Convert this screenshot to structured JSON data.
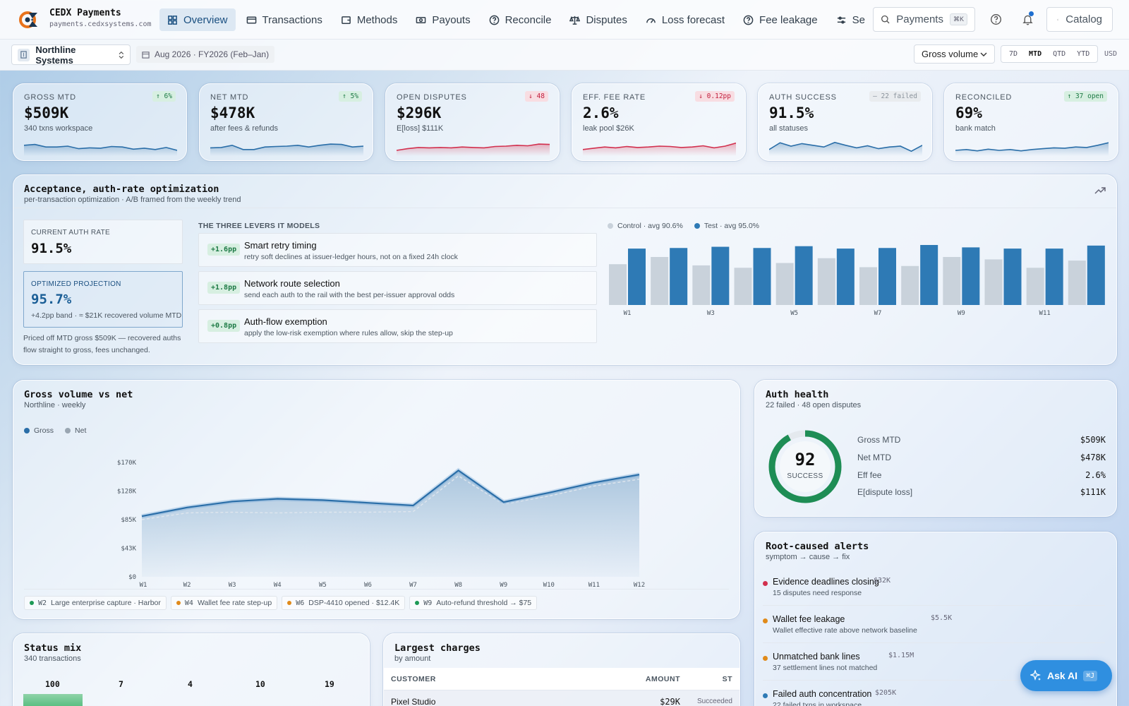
{
  "brand": {
    "name": "CEDX Payments",
    "domain": "payments.cedxsystems.com"
  },
  "nav": [
    {
      "label": "Overview",
      "icon": "grid-icon",
      "active": true
    },
    {
      "label": "Transactions",
      "icon": "card-icon"
    },
    {
      "label": "Methods",
      "icon": "wallet-icon"
    },
    {
      "label": "Payouts",
      "icon": "cash-icon"
    },
    {
      "label": "Reconcile",
      "icon": "help-circle-icon"
    },
    {
      "label": "Disputes",
      "icon": "scale-icon"
    },
    {
      "label": "Loss forecast",
      "icon": "gauge-icon"
    },
    {
      "label": "Fee leakage",
      "icon": "help-circle-icon"
    },
    {
      "label": "Se",
      "icon": "sliders-icon"
    }
  ],
  "search": {
    "label": "Payments",
    "shortcut": "⌘K"
  },
  "catalog_label": "Catalog",
  "workspace": "Northline Systems",
  "period": "Aug 2026 · FY2026 (Feb–Jan)",
  "metric_select": "Gross volume",
  "ranges": [
    "7D",
    "MTD",
    "QTD",
    "YTD"
  ],
  "active_range": "MTD",
  "currency": "USD",
  "kpis": [
    {
      "label": "GROSS MTD",
      "badge": "↑ 6%",
      "badge_type": "up",
      "value": "$509K",
      "sub": "340 txns workspace",
      "spark_color": "#2a6ea8",
      "spark": [
        0.55,
        0.6,
        0.45,
        0.45,
        0.5,
        0.35,
        0.4,
        0.38,
        0.48,
        0.45,
        0.32,
        0.38,
        0.3,
        0.42,
        0.25
      ]
    },
    {
      "label": "NET MTD",
      "badge": "↑ 5%",
      "badge_type": "up",
      "value": "$478K",
      "sub": "after fees & refunds",
      "spark_color": "#2a6ea8",
      "spark": [
        0.4,
        0.42,
        0.55,
        0.3,
        0.3,
        0.45,
        0.48,
        0.5,
        0.55,
        0.45,
        0.55,
        0.62,
        0.6,
        0.45,
        0.5
      ]
    },
    {
      "label": "OPEN DISPUTES",
      "badge": "↓ 48",
      "badge_type": "down",
      "value": "$296K",
      "sub": "E[loss] $111K",
      "spark_color": "#d2304e",
      "spark": [
        0.25,
        0.35,
        0.42,
        0.4,
        0.42,
        0.4,
        0.45,
        0.42,
        0.4,
        0.48,
        0.5,
        0.55,
        0.52,
        0.62,
        0.6
      ]
    },
    {
      "label": "EFF. FEE RATE",
      "badge": "↓ 0.12pp",
      "badge_type": "down",
      "value": "2.6%",
      "sub": "leak pool $26K",
      "spark_color": "#d2304e",
      "spark": [
        0.3,
        0.38,
        0.45,
        0.4,
        0.48,
        0.42,
        0.45,
        0.5,
        0.48,
        0.42,
        0.45,
        0.52,
        0.4,
        0.5,
        0.68
      ]
    },
    {
      "label": "AUTH SUCCESS",
      "badge": "— 22 failed",
      "badge_type": "flat",
      "value": "91.5%",
      "sub": "all statuses",
      "spark_color": "#2a6ea8",
      "spark": [
        0.3,
        0.7,
        0.5,
        0.65,
        0.55,
        0.45,
        0.72,
        0.55,
        0.4,
        0.52,
        0.35,
        0.45,
        0.5,
        0.2,
        0.55
      ]
    },
    {
      "label": "RECONCILED",
      "badge": "↑ 37 open",
      "badge_type": "up",
      "value": "69%",
      "sub": "bank match",
      "spark_color": "#2a6ea8",
      "spark": [
        0.25,
        0.3,
        0.22,
        0.32,
        0.25,
        0.3,
        0.22,
        0.3,
        0.35,
        0.4,
        0.38,
        0.45,
        0.42,
        0.55,
        0.7
      ]
    }
  ],
  "acceptance": {
    "title": "Acceptance, auth-rate optimization",
    "subtitle": "per-transaction optimization · A/B framed from the weekly trend",
    "current_label": "CURRENT AUTH RATE",
    "current_value": "91.5%",
    "proj_label": "OPTIMIZED PROJECTION",
    "proj_value": "95.7%",
    "proj_sub": "+4.2pp band · ≈ $21K recovered volume MTD",
    "note": "Priced off MTD gross $509K — recovered auths flow straight to gross, fees unchanged.",
    "levers_title": "THE THREE LEVERS IT MODELS",
    "levers": [
      {
        "pp": "+1.6pp",
        "name": "Smart retry timing",
        "desc": "retry soft declines at issuer-ledger hours, not on a fixed 24h clock"
      },
      {
        "pp": "+1.8pp",
        "name": "Network route selection",
        "desc": "send each auth to the rail with the best per-issuer approval odds"
      },
      {
        "pp": "+0.8pp",
        "name": "Auth-flow exemption",
        "desc": "apply the low-risk exemption where rules allow, skip the step-up"
      }
    ]
  },
  "ab_chart_data": {
    "type": "bar",
    "series": [
      {
        "name": "Control · avg 90.6%",
        "color": "#c9d2db",
        "values": [
          0.68,
          0.8,
          0.66,
          0.62,
          0.7,
          0.78,
          0.63,
          0.65,
          0.8,
          0.76,
          0.62,
          0.74
        ]
      },
      {
        "name": "Test · avg 95.0%",
        "color": "#2e7ab5",
        "values": [
          0.94,
          0.95,
          0.97,
          0.95,
          0.98,
          0.94,
          0.95,
          1.0,
          0.96,
          0.94,
          0.94,
          0.99
        ]
      }
    ],
    "tick_labels": [
      "W1",
      "",
      "W3",
      "",
      "W5",
      "",
      "W7",
      "",
      "W9",
      "",
      "W11",
      ""
    ]
  },
  "gross_chart": {
    "title": "Gross volume vs net",
    "subtitle": "Northline · weekly",
    "chart_data": {
      "type": "area",
      "x": [
        "W1",
        "W2",
        "W3",
        "W4",
        "W5",
        "W6",
        "W7",
        "W8",
        "W9",
        "W10",
        "W11",
        "W12"
      ],
      "series": [
        {
          "name": "Gross",
          "color": "#2a6ea8",
          "values": [
            90,
            103,
            112,
            116,
            114,
            110,
            106,
            158,
            111,
            125,
            140,
            152
          ]
        },
        {
          "name": "Net",
          "color": "#9aa6b2",
          "values": [
            85,
            95,
            96,
            95,
            96,
            96,
            97,
            150,
            108,
            120,
            135,
            145
          ]
        }
      ],
      "y_ticks": [
        "$0",
        "$43K",
        "$85K",
        "$128K",
        "$170K"
      ],
      "ylim": [
        0,
        170
      ]
    },
    "annotations": [
      {
        "week": "W2",
        "text": "Large enterprise capture · Harbor",
        "color": "#1d9a55"
      },
      {
        "week": "W4",
        "text": "Wallet fee rate step-up",
        "color": "#e08a1a"
      },
      {
        "week": "W6",
        "text": "DSP-4410 opened · $12.4K",
        "color": "#e08a1a"
      },
      {
        "week": "W9",
        "text": "Auto-refund threshold → $75",
        "color": "#1d9a55"
      }
    ]
  },
  "auth_health": {
    "title": "Auth health",
    "subtitle": "22 failed · 48 open disputes",
    "score": "92",
    "score_label": "SUCCESS",
    "score_fraction": 0.92,
    "metrics": [
      {
        "label": "Gross MTD",
        "value": "$509K"
      },
      {
        "label": "Net MTD",
        "value": "$478K"
      },
      {
        "label": "Eff fee",
        "value": "2.6%"
      },
      {
        "label": "E[dispute loss]",
        "value": "$111K"
      }
    ]
  },
  "alerts": {
    "title": "Root-caused alerts",
    "subtitle": "symptom → cause → fix",
    "items": [
      {
        "title": "Evidence deadlines closing",
        "amount": "$32K",
        "desc": "15 disputes need response",
        "color": "#d2304e"
      },
      {
        "title": "Wallet fee leakage",
        "amount": "$5.5K",
        "desc": "Wallet effective rate above network baseline",
        "color": "#e08a1a"
      },
      {
        "title": "Unmatched bank lines",
        "amount": "$1.15M",
        "desc": "37 settlement lines not matched",
        "color": "#e08a1a"
      },
      {
        "title": "Failed auth concentration",
        "amount": "$205K",
        "desc": "22 failed txns in workspace",
        "color": "#2e7ab5"
      }
    ]
  },
  "status_mix": {
    "title": "Status mix",
    "subtitle": "340 transactions",
    "counts": [
      "100",
      "7",
      "4",
      "10",
      "19"
    ]
  },
  "largest": {
    "title": "Largest charges",
    "subtitle": "by amount",
    "columns": [
      "CUSTOMER",
      "AMOUNT",
      "ST"
    ],
    "rows": [
      {
        "customer": "Pixel Studio",
        "amount": "$29K",
        "status": "Succeeded"
      }
    ]
  },
  "ask_ai": {
    "label": "Ask AI",
    "shortcut": "⌘J"
  }
}
